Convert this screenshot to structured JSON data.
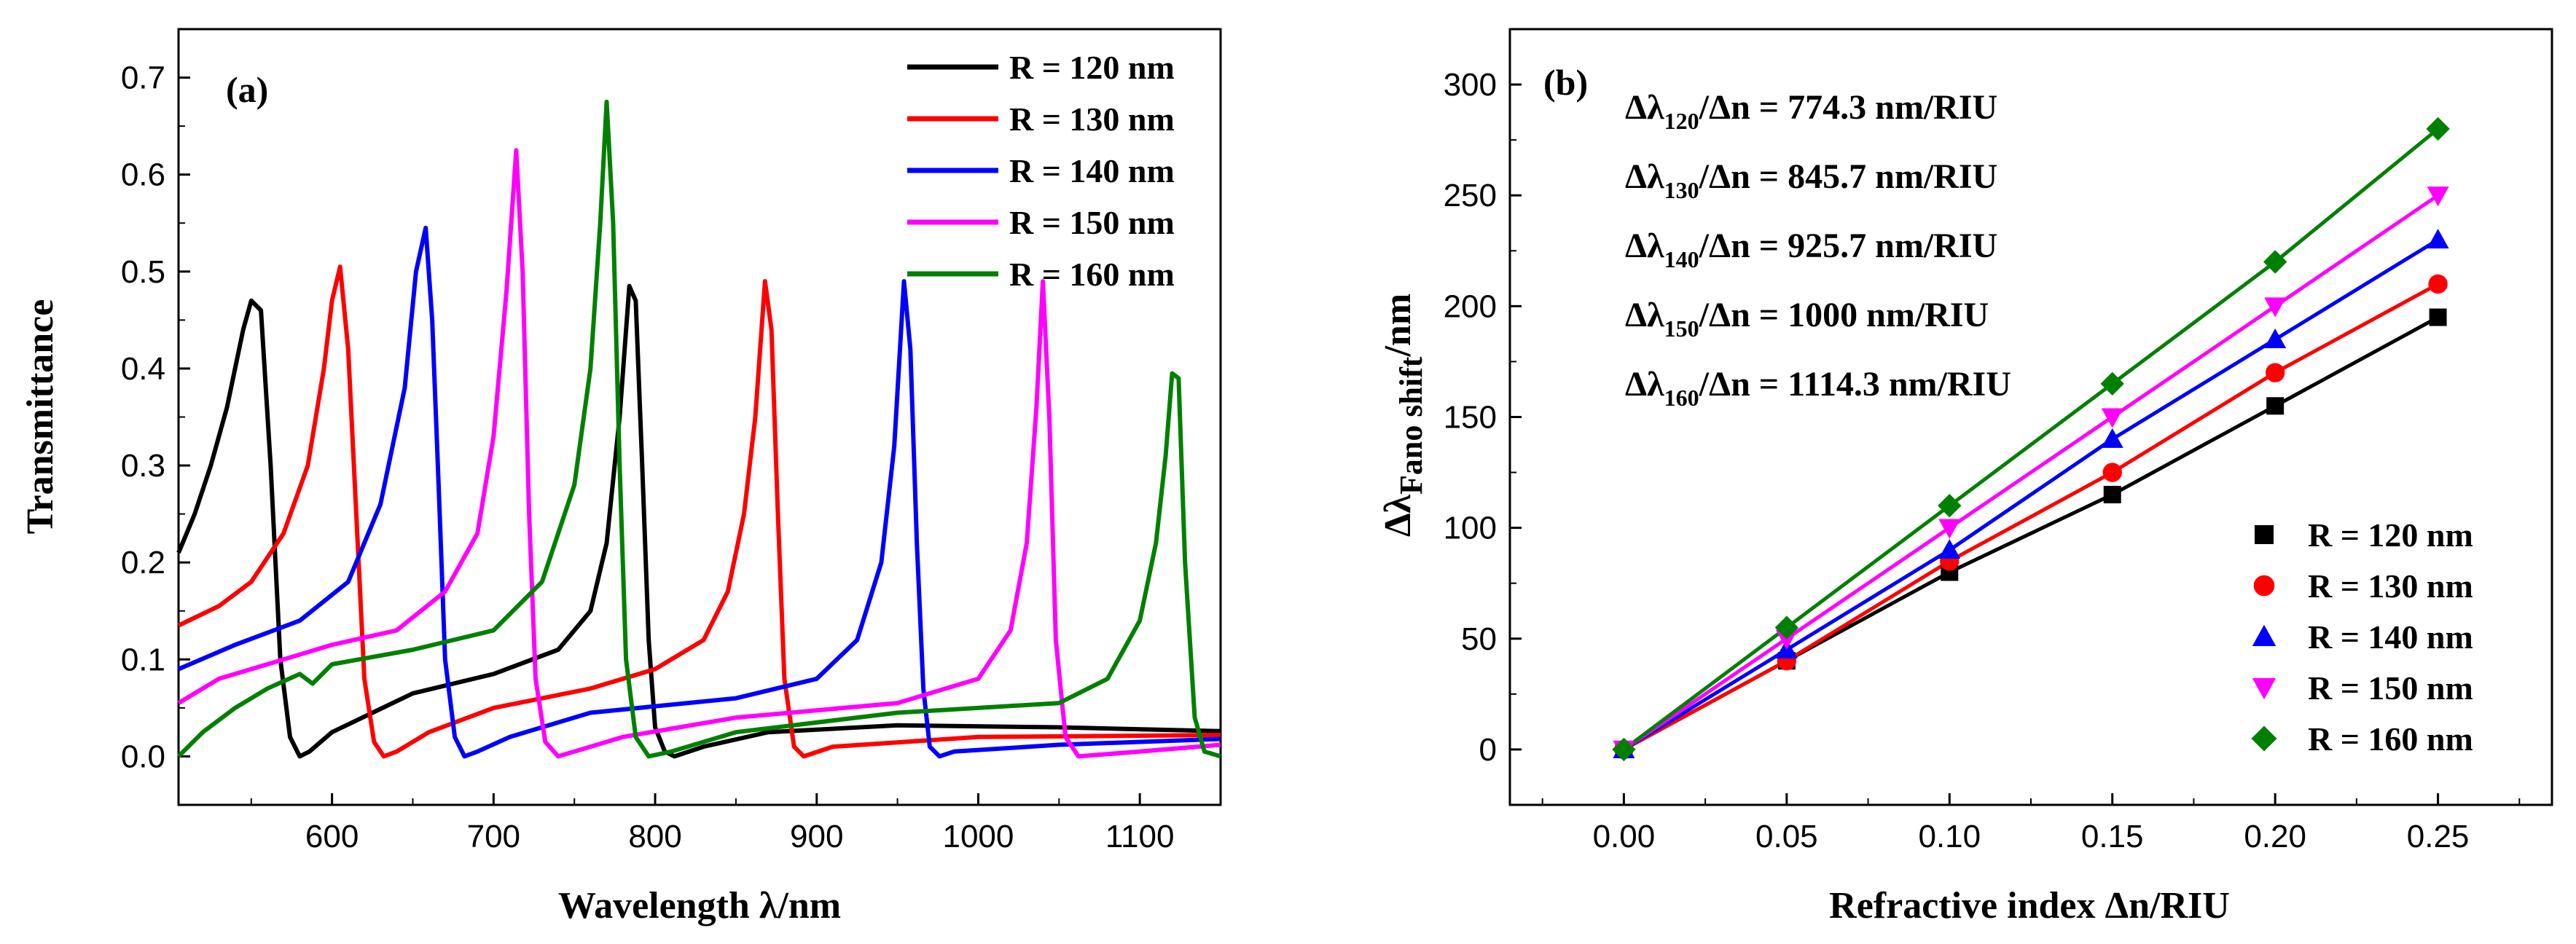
{
  "chart_data": [
    {
      "panel_label": "(a)",
      "type": "line",
      "xlabel": "Wavelength λ/nm",
      "ylabel": "Transmittance",
      "xlim": [
        505,
        1150
      ],
      "ylim": [
        -0.05,
        0.75
      ],
      "xticks": [
        600,
        700,
        800,
        900,
        1000,
        1100
      ],
      "yticks": [
        0.0,
        0.1,
        0.2,
        0.3,
        0.4,
        0.5,
        0.6,
        0.7
      ],
      "legend_position": "top-right",
      "series": [
        {
          "name": "R = 120 nm",
          "color": "#000000",
          "x": [
            505,
            515,
            525,
            535,
            545,
            550,
            556,
            562,
            568,
            574,
            580,
            586,
            600,
            650,
            700,
            740,
            760,
            770,
            778,
            784,
            788,
            792,
            796,
            800,
            806,
            812,
            830,
            870,
            950,
            1050,
            1150
          ],
          "y": [
            0.21,
            0.25,
            0.3,
            0.36,
            0.44,
            0.47,
            0.46,
            0.3,
            0.1,
            0.02,
            0.0,
            0.005,
            0.025,
            0.065,
            0.085,
            0.11,
            0.15,
            0.22,
            0.35,
            0.485,
            0.47,
            0.3,
            0.12,
            0.03,
            0.005,
            0.0,
            0.01,
            0.025,
            0.032,
            0.03,
            0.026
          ]
        },
        {
          "name": "R = 130 nm",
          "color": "#ff0000",
          "x": [
            505,
            530,
            550,
            570,
            585,
            595,
            600,
            605,
            610,
            615,
            620,
            626,
            632,
            640,
            660,
            700,
            760,
            800,
            830,
            845,
            855,
            862,
            868,
            872,
            876,
            880,
            886,
            892,
            910,
            1000,
            1150
          ],
          "y": [
            0.135,
            0.155,
            0.18,
            0.23,
            0.3,
            0.4,
            0.47,
            0.505,
            0.42,
            0.25,
            0.08,
            0.015,
            0.0,
            0.005,
            0.025,
            0.05,
            0.07,
            0.09,
            0.12,
            0.17,
            0.25,
            0.35,
            0.49,
            0.44,
            0.25,
            0.08,
            0.01,
            0.0,
            0.01,
            0.02,
            0.022
          ]
        },
        {
          "name": "R = 140 nm",
          "color": "#0000ff",
          "x": [
            505,
            540,
            580,
            610,
            630,
            645,
            652,
            658,
            662,
            666,
            670,
            676,
            682,
            690,
            710,
            760,
            850,
            900,
            925,
            940,
            948,
            954,
            958,
            962,
            966,
            970,
            976,
            985,
            1050,
            1150
          ],
          "y": [
            0.09,
            0.115,
            0.14,
            0.18,
            0.26,
            0.38,
            0.5,
            0.545,
            0.45,
            0.28,
            0.1,
            0.02,
            0.0,
            0.005,
            0.02,
            0.045,
            0.06,
            0.08,
            0.12,
            0.2,
            0.32,
            0.49,
            0.42,
            0.22,
            0.07,
            0.01,
            0.0,
            0.005,
            0.012,
            0.018
          ]
        },
        {
          "name": "R = 150 nm",
          "color": "#ff00ff",
          "x": [
            505,
            530,
            560,
            600,
            640,
            670,
            690,
            700,
            708,
            714,
            718,
            722,
            726,
            732,
            740,
            750,
            780,
            850,
            950,
            1000,
            1020,
            1030,
            1036,
            1040,
            1044,
            1048,
            1054,
            1062,
            1100,
            1150
          ],
          "y": [
            0.055,
            0.08,
            0.095,
            0.115,
            0.13,
            0.17,
            0.23,
            0.33,
            0.48,
            0.625,
            0.5,
            0.25,
            0.08,
            0.015,
            0.0,
            0.005,
            0.02,
            0.04,
            0.055,
            0.08,
            0.13,
            0.22,
            0.36,
            0.49,
            0.35,
            0.12,
            0.02,
            0.0,
            0.005,
            0.012
          ]
        },
        {
          "name": "R = 160 nm",
          "color": "#008000",
          "x": [
            505,
            520,
            540,
            560,
            580,
            588,
            600,
            650,
            700,
            730,
            750,
            760,
            766,
            770,
            774,
            778,
            782,
            788,
            796,
            810,
            850,
            950,
            1050,
            1080,
            1100,
            1110,
            1116,
            1120,
            1124,
            1128,
            1134,
            1140,
            1150
          ],
          "y": [
            0.0,
            0.025,
            0.05,
            0.07,
            0.085,
            0.075,
            0.095,
            0.11,
            0.13,
            0.18,
            0.28,
            0.4,
            0.55,
            0.675,
            0.55,
            0.3,
            0.1,
            0.02,
            0.0,
            0.005,
            0.025,
            0.045,
            0.055,
            0.08,
            0.14,
            0.22,
            0.31,
            0.395,
            0.39,
            0.2,
            0.04,
            0.005,
            0.0
          ]
        }
      ]
    },
    {
      "panel_label": "(b)",
      "type": "scatter",
      "xlabel": "Refractive index Δn/RIU",
      "ylabel_main": "Δλ",
      "ylabel_sub": "Fano shift",
      "ylabel_tail": "/nm",
      "xlim": [
        -0.035,
        0.285
      ],
      "ylim": [
        -25,
        325
      ],
      "xticks": [
        "0.00",
        "0.05",
        "0.10",
        "0.15",
        "0.20",
        "0.25"
      ],
      "yticks": [
        0,
        50,
        100,
        150,
        200,
        250,
        300
      ],
      "legend_position": "bottom-right",
      "annotations": [
        {
          "pre": "Δλ",
          "sub": "120",
          "post": "/Δn = 774.3 nm/RIU"
        },
        {
          "pre": "Δλ",
          "sub": "130",
          "post": "/Δn = 845.7 nm/RIU"
        },
        {
          "pre": "Δλ",
          "sub": "140",
          "post": "/Δn = 925.7 nm/RIU"
        },
        {
          "pre": "Δλ",
          "sub": "150",
          "post": "/Δn = 1000 nm/RIU"
        },
        {
          "pre": "Δλ",
          "sub": "160",
          "post": "/Δn = 1114.3 nm/RIU"
        }
      ],
      "x": [
        0.0,
        0.05,
        0.1,
        0.15,
        0.2,
        0.25
      ],
      "series": [
        {
          "name": "R = 120 nm",
          "color": "#000000",
          "marker": "square",
          "values": [
            0,
            40,
            80,
            115,
            155,
            195
          ]
        },
        {
          "name": "R = 130 nm",
          "color": "#ff0000",
          "marker": "circle",
          "values": [
            0,
            40,
            85,
            125,
            170,
            210
          ]
        },
        {
          "name": "R = 140 nm",
          "color": "#0000ff",
          "marker": "triangle-up",
          "values": [
            0,
            45,
            90,
            140,
            185,
            230
          ]
        },
        {
          "name": "R = 150 nm",
          "color": "#ff00ff",
          "marker": "triangle-down",
          "values": [
            0,
            50,
            100,
            150,
            200,
            250
          ]
        },
        {
          "name": "R = 160 nm",
          "color": "#008000",
          "marker": "diamond",
          "values": [
            0,
            55,
            110,
            165,
            220,
            280
          ]
        }
      ]
    }
  ]
}
